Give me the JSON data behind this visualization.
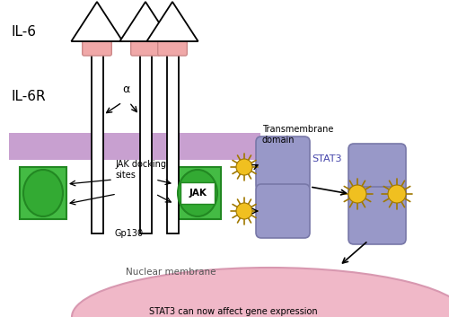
{
  "bg_color": "#ffffff",
  "membrane_color": "#c8a0d0",
  "receptor_fill": "#ffffff",
  "receptor_stroke": "#000000",
  "jak_box_color": "#44bb44",
  "jak_oval_color": "#44bb44",
  "stat3_fill": "#9898c8",
  "stat3_stroke": "#7878a8",
  "sun_color": "#f0c020",
  "sun_ray_color": "#b08800",
  "nucleus_fill": "#f0b8c8",
  "nucleus_stroke": "#d898b0",
  "il6_cap_color": "#f0a8a8",
  "text_color": "#000000",
  "labels": {
    "il6": "IL-6",
    "il6r": "IL-6R",
    "transmembrane": "Transmembrane\ndomain",
    "jak_docking": "JAK docking\nsites",
    "gp130": "Gp130",
    "jak": "JAK",
    "stat3": "STAT3",
    "nuclear_membrane": "Nuclear membrane",
    "stat3_effect": "STAT3 can now affect gene expression",
    "alpha": "α"
  }
}
